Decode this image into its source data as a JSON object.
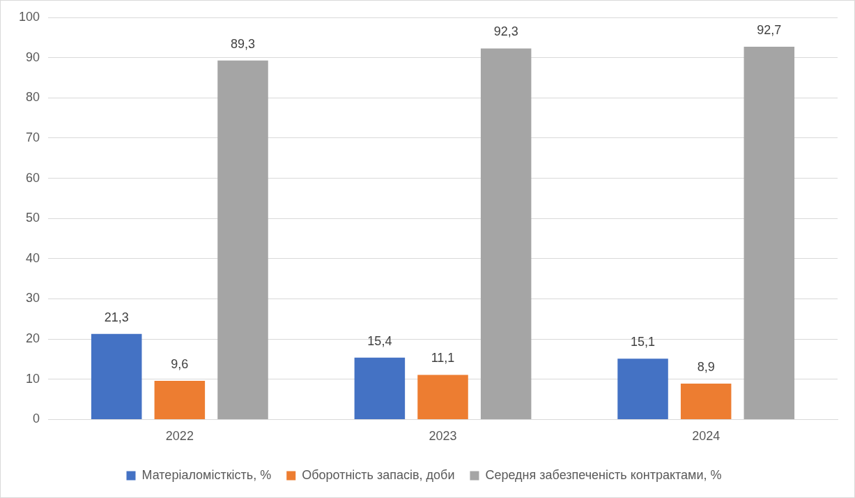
{
  "chart_data": {
    "type": "bar",
    "categories": [
      "2022",
      "2023",
      "2024"
    ],
    "series": [
      {
        "name": "Матеріаломісткість, %",
        "color": "#4472c4",
        "values": [
          21.3,
          15.4,
          15.1
        ],
        "value_labels": [
          "21,3",
          "15,4",
          "15,1"
        ]
      },
      {
        "name": "Оборотність запасів, доби",
        "color": "#ed7d31",
        "values": [
          9.6,
          11.1,
          8.9
        ],
        "value_labels": [
          "9,6",
          "11,1",
          "8,9"
        ]
      },
      {
        "name": "Середня забезпеченість контрактами, %",
        "color": "#a5a5a5",
        "values": [
          89.3,
          92.3,
          92.7
        ],
        "value_labels": [
          "89,3",
          "92,3",
          "92,7"
        ]
      }
    ],
    "ylim": [
      0,
      100
    ],
    "yticks": [
      0,
      10,
      20,
      30,
      40,
      50,
      60,
      70,
      80,
      90,
      100
    ],
    "grid": "y",
    "legend": "bottom"
  }
}
